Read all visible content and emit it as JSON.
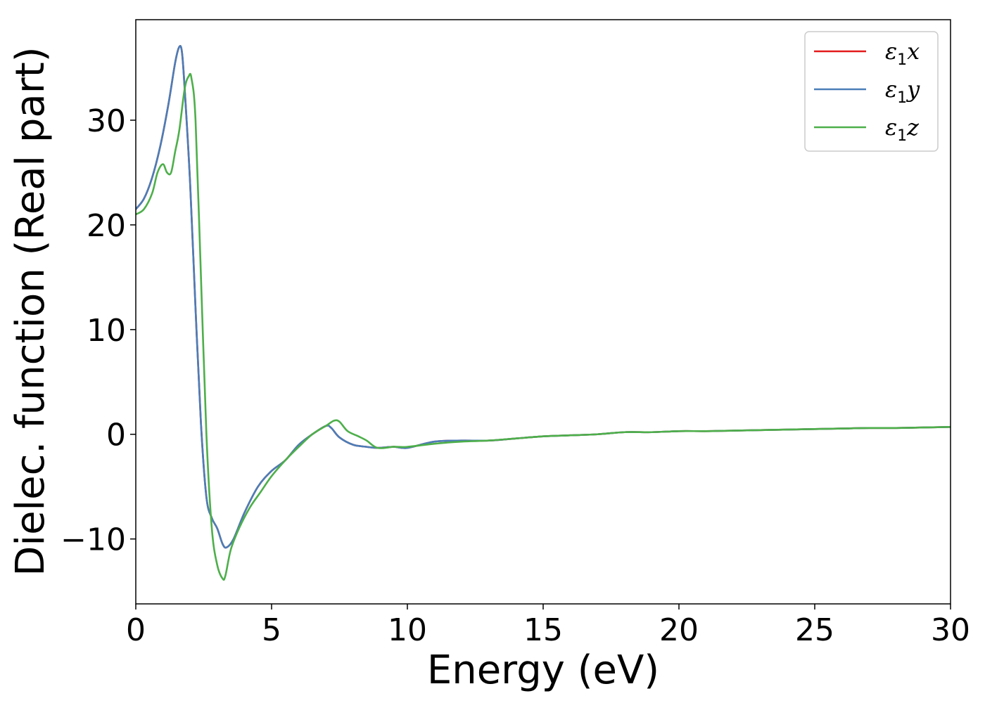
{
  "chart_data": {
    "type": "line",
    "title": "",
    "xlabel": "Energy (eV)",
    "ylabel": "Dielec. function (Real part)",
    "xlim": [
      0,
      30
    ],
    "ylim": [
      -16.2,
      39.6
    ],
    "xticks": [
      0,
      5,
      10,
      15,
      20,
      25,
      30
    ],
    "xtick_labels": [
      "0",
      "5",
      "10",
      "15",
      "20",
      "25",
      "30"
    ],
    "yticks": [
      -10,
      0,
      10,
      20,
      30
    ],
    "ytick_labels": [
      "−10",
      "0",
      "10",
      "20",
      "30"
    ],
    "grid": false,
    "legend": {
      "position": "top-right"
    },
    "series": [
      {
        "name": "ε₁x",
        "legend_main": "ε",
        "legend_sub": "1",
        "legend_tail": "x",
        "color": "#e41a1c",
        "x": [
          0,
          0.3,
          0.6,
          0.9,
          1.2,
          1.45,
          1.6,
          1.7,
          1.8,
          2.0,
          2.2,
          2.4,
          2.6,
          2.8,
          3.0,
          3.2,
          3.35,
          3.6,
          4.0,
          4.5,
          5.0,
          5.5,
          6.0,
          6.5,
          7.0,
          7.2,
          7.5,
          8.0,
          8.5,
          8.9,
          9.5,
          10.0,
          11.0,
          12.0,
          13.0,
          14.0,
          15.0,
          16.0,
          17.0,
          18.0,
          19.0,
          20.0,
          21.0,
          22.0,
          23.0,
          24.0,
          25.0,
          26.0,
          27.0,
          28.0,
          29.0,
          30.0
        ],
        "y": [
          21.5,
          22.5,
          24.5,
          27.5,
          31.5,
          35.5,
          37.0,
          36.5,
          33.0,
          24.0,
          12.0,
          1.0,
          -6.0,
          -8.0,
          -9.0,
          -10.5,
          -10.8,
          -10.0,
          -7.5,
          -5.0,
          -3.5,
          -2.5,
          -1.0,
          0.0,
          0.8,
          0.6,
          -0.3,
          -1.0,
          -1.2,
          -1.3,
          -1.2,
          -1.3,
          -0.7,
          -0.6,
          -0.6,
          -0.4,
          -0.2,
          -0.1,
          0.0,
          0.2,
          0.2,
          0.3,
          0.3,
          0.35,
          0.4,
          0.45,
          0.5,
          0.55,
          0.6,
          0.6,
          0.65,
          0.7
        ]
      },
      {
        "name": "ε₁y",
        "legend_main": "ε",
        "legend_sub": "1",
        "legend_tail": "y",
        "color": "#4a7eb8",
        "x": [
          0,
          0.3,
          0.6,
          0.9,
          1.2,
          1.45,
          1.6,
          1.7,
          1.8,
          2.0,
          2.2,
          2.4,
          2.6,
          2.8,
          3.0,
          3.2,
          3.35,
          3.6,
          4.0,
          4.5,
          5.0,
          5.5,
          6.0,
          6.5,
          7.0,
          7.2,
          7.5,
          8.0,
          8.5,
          8.9,
          9.5,
          10.0,
          11.0,
          12.0,
          13.0,
          14.0,
          15.0,
          16.0,
          17.0,
          18.0,
          19.0,
          20.0,
          21.0,
          22.0,
          23.0,
          24.0,
          25.0,
          26.0,
          27.0,
          28.0,
          29.0,
          30.0
        ],
        "y": [
          21.5,
          22.5,
          24.5,
          27.5,
          31.5,
          35.5,
          37.0,
          36.5,
          33.0,
          24.0,
          12.0,
          1.0,
          -6.0,
          -8.0,
          -9.0,
          -10.5,
          -10.8,
          -10.0,
          -7.5,
          -5.0,
          -3.5,
          -2.5,
          -1.0,
          0.0,
          0.8,
          0.6,
          -0.3,
          -1.0,
          -1.2,
          -1.3,
          -1.2,
          -1.3,
          -0.7,
          -0.6,
          -0.6,
          -0.4,
          -0.2,
          -0.1,
          0.0,
          0.2,
          0.2,
          0.3,
          0.3,
          0.35,
          0.4,
          0.45,
          0.5,
          0.55,
          0.6,
          0.6,
          0.65,
          0.7
        ]
      },
      {
        "name": "ε₁z",
        "legend_main": "ε",
        "legend_sub": "1",
        "legend_tail": "z",
        "color": "#4daf4a",
        "x": [
          0,
          0.3,
          0.6,
          0.8,
          1.0,
          1.15,
          1.3,
          1.45,
          1.6,
          1.8,
          1.95,
          2.05,
          2.2,
          2.4,
          2.6,
          2.8,
          3.0,
          3.2,
          3.3,
          3.5,
          3.8,
          4.2,
          4.6,
          5.0,
          5.5,
          6.0,
          6.5,
          7.0,
          7.3,
          7.5,
          7.8,
          8.2,
          8.5,
          8.9,
          9.5,
          10.0,
          11.0,
          12.0,
          13.0,
          14.0,
          15.0,
          16.0,
          17.0,
          18.0,
          19.0,
          20.0,
          21.0,
          22.0,
          23.0,
          24.0,
          25.0,
          26.0,
          27.0,
          28.0,
          29.0,
          30.0
        ],
        "y": [
          21.0,
          21.5,
          23.0,
          25.0,
          25.8,
          25.0,
          25.0,
          27.0,
          29.0,
          33.0,
          34.2,
          34.0,
          30.0,
          15.0,
          0.0,
          -9.0,
          -12.5,
          -13.8,
          -13.5,
          -11.0,
          -9.0,
          -7.0,
          -5.5,
          -4.0,
          -2.5,
          -1.2,
          0.0,
          0.8,
          1.3,
          1.2,
          0.3,
          -0.2,
          -0.6,
          -1.3,
          -1.2,
          -1.2,
          -0.9,
          -0.7,
          -0.6,
          -0.4,
          -0.2,
          -0.1,
          0.0,
          0.2,
          0.2,
          0.3,
          0.3,
          0.35,
          0.4,
          0.45,
          0.5,
          0.55,
          0.6,
          0.6,
          0.65,
          0.7
        ]
      }
    ]
  }
}
